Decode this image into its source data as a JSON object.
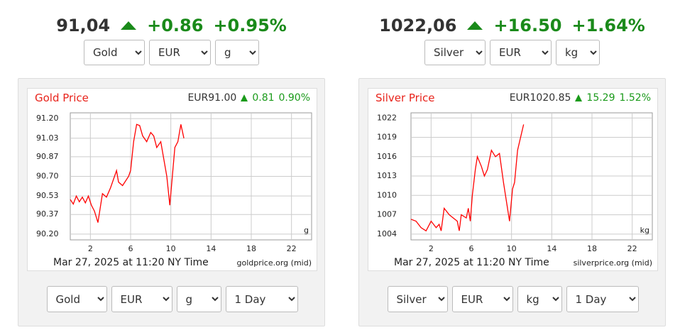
{
  "widgets": [
    {
      "header": {
        "price": "91,04",
        "change": "+0.86",
        "change_pct": "+0.95%"
      },
      "top_selects": [
        "Gold",
        "EUR",
        "g"
      ],
      "bottom_selects": [
        "Gold",
        "EUR",
        "g",
        "1 Day"
      ]
    },
    {
      "header": {
        "price": "1022,06",
        "change": "+16.50",
        "change_pct": "+1.64%"
      },
      "top_selects": [
        "Silver",
        "EUR",
        "kg"
      ],
      "bottom_selects": [
        "Silver",
        "EUR",
        "kg",
        "1 Day"
      ]
    }
  ],
  "chart_data": [
    {
      "type": "line",
      "title": "Gold Price",
      "price": "EUR91.00",
      "change": "0.81",
      "change_pct": "0.90%",
      "unit": "g",
      "timestamp": "Mar 27, 2025 at 11:20 NY Time",
      "source": "goldprice.org (mid)",
      "x": [
        0,
        0.3,
        0.6,
        0.9,
        1.2,
        1.5,
        1.8,
        2.1,
        2.4,
        2.75,
        3.2,
        3.6,
        4.0,
        4.6,
        4.8,
        5.2,
        5.8,
        6.0,
        6.3,
        6.6,
        6.9,
        7.2,
        7.6,
        8.0,
        8.3,
        8.6,
        9.0,
        9.3,
        9.6,
        9.9,
        10.2,
        10.4,
        10.7,
        11.0,
        11.3
      ],
      "series": [
        {
          "color": "#ff0000",
          "values": [
            90.5,
            90.46,
            90.53,
            90.48,
            90.52,
            90.47,
            90.53,
            90.45,
            90.4,
            90.3,
            90.55,
            90.52,
            90.6,
            90.75,
            90.65,
            90.62,
            90.7,
            90.75,
            91.0,
            91.15,
            91.14,
            91.05,
            91.0,
            91.08,
            91.05,
            90.95,
            91.0,
            90.85,
            90.7,
            90.45,
            90.75,
            90.95,
            91.0,
            91.15,
            91.03
          ]
        }
      ],
      "xlim": [
        0,
        24
      ],
      "xticks": [
        2,
        6,
        10,
        14,
        18,
        22
      ],
      "ylim": [
        90.15,
        91.25
      ],
      "yticks": [
        {
          "value": 90.2,
          "label": "90.20"
        },
        90.37,
        90.53,
        {
          "value": 90.7,
          "label": "90.70"
        },
        90.87,
        91.03,
        {
          "value": 91.2,
          "label": "91.20"
        }
      ],
      "grid": true
    },
    {
      "type": "line",
      "title": "Silver Price",
      "price": "EUR1020.85",
      "change": "15.29",
      "change_pct": "1.52%",
      "unit": "kg",
      "timestamp": "Mar 27, 2025 at 11:20 NY Time",
      "source": "silverprice.org (mid)",
      "x": [
        0,
        0.5,
        1.0,
        1.5,
        2.0,
        2.5,
        2.8,
        3.0,
        3.3,
        3.8,
        4.2,
        4.6,
        4.8,
        5.0,
        5.5,
        5.7,
        5.9,
        6.1,
        6.4,
        6.6,
        7.0,
        7.3,
        7.6,
        8.0,
        8.4,
        8.8,
        9.2,
        9.6,
        9.8,
        10.1,
        10.3,
        10.6,
        10.9,
        11.2
      ],
      "series": [
        {
          "color": "#ff0000",
          "values": [
            1006.3,
            1006,
            1005,
            1004.5,
            1006,
            1005,
            1005.5,
            1004.5,
            1008,
            1007,
            1006.5,
            1006,
            1004.5,
            1007,
            1006.5,
            1008,
            1006,
            1010,
            1014,
            1016,
            1014.5,
            1013,
            1014,
            1017,
            1016,
            1016.5,
            1012,
            1008,
            1006,
            1011,
            1012,
            1017,
            1019,
            1021
          ]
        }
      ],
      "xlim": [
        0,
        24
      ],
      "xticks": [
        2,
        6,
        10,
        14,
        18,
        22
      ],
      "ylim": [
        1003.1,
        1022.8
      ],
      "yticks": [
        1004,
        1007,
        1010,
        1013,
        1016,
        1019,
        1022
      ],
      "grid": true
    }
  ]
}
